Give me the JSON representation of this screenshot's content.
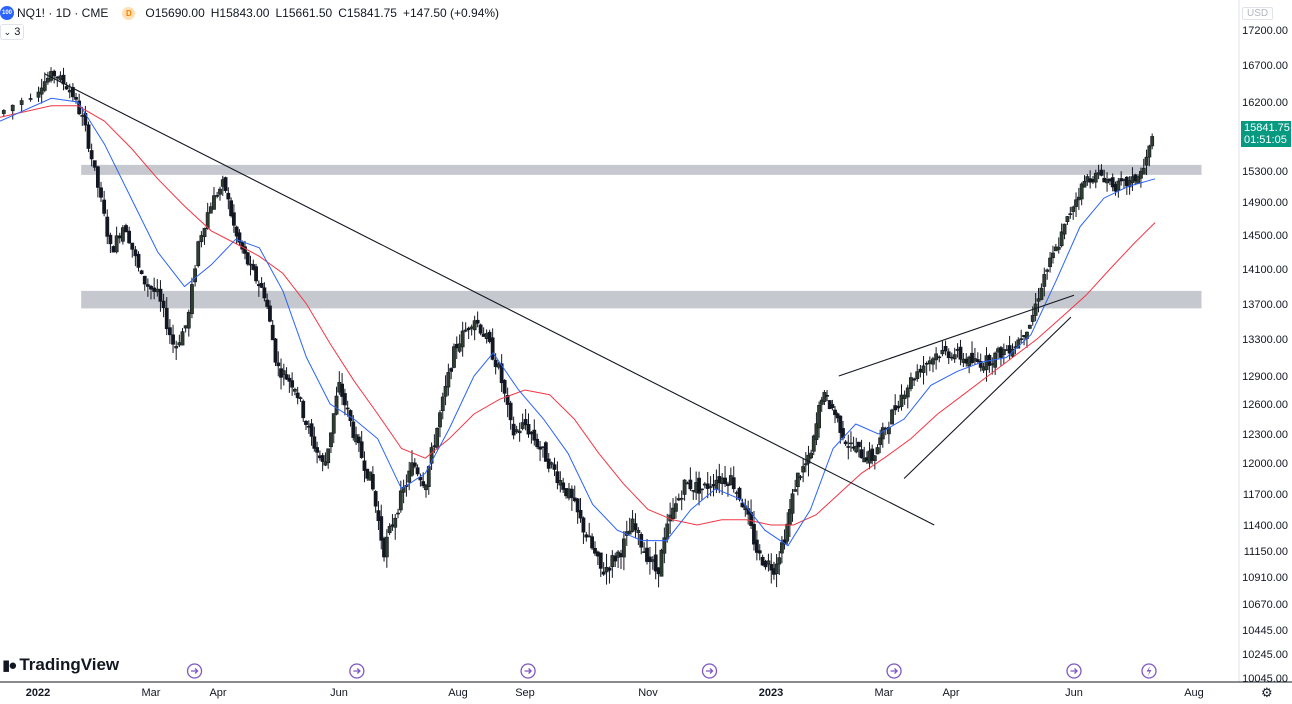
{
  "header": {
    "symbol_badge": "100",
    "title": "NQ1! · 1D · CME",
    "d_badge": "D",
    "open_label": "O",
    "open": "15690.00",
    "high_label": "H",
    "high": "15843.00",
    "low_label": "L",
    "low": "15661.50",
    "close_label": "C",
    "close": "15841.75",
    "change": "+147.50 (+0.94%)",
    "indicators_count": "3"
  },
  "price_scale": {
    "currency": "USD",
    "last_price": "15841.75",
    "countdown": "01:51:05"
  },
  "branding": {
    "logo_text": "TradingView"
  },
  "colors": {
    "up": "#2f3f2f",
    "down": "#131722",
    "ma_fast": "#2962ff",
    "ma_slow": "#f23645",
    "zone": "#b2b5be",
    "badge": "#089981"
  },
  "icons": {
    "settings": "gear-icon",
    "events": "dividend-arrow-icon",
    "lightning": "lightning-icon"
  },
  "chart_data": {
    "type": "candlestick",
    "y_ticks": [
      "17200.00",
      "16700.00",
      "16200.00",
      "15300.00",
      "14900.00",
      "14500.00",
      "14100.00",
      "13700.00",
      "13300.00",
      "12900.00",
      "12600.00",
      "12300.00",
      "12000.00",
      "11700.00",
      "11400.00",
      "11150.00",
      "10910.00",
      "10670.00",
      "10445.00",
      "10245.00",
      "10045.00"
    ],
    "x_ticks": [
      {
        "label": "2022",
        "t": 0.2,
        "bold": true
      },
      {
        "label": "Mar",
        "t": 1.9
      },
      {
        "label": "Apr",
        "t": 2.9
      },
      {
        "label": "Jun",
        "t": 4.95
      },
      {
        "label": "Aug",
        "t": 6.95
      },
      {
        "label": "Sep",
        "t": 8.0
      },
      {
        "label": "Nov",
        "t": 10.0
      },
      {
        "label": "2023",
        "t": 12.0,
        "bold": true
      },
      {
        "label": "Mar",
        "t": 14.0
      },
      {
        "label": "Apr",
        "t": 15.0
      },
      {
        "label": "Jun",
        "t": 17.0
      },
      {
        "label": "Aug",
        "t": 19.0
      }
    ],
    "price_path": [
      [
        0.0,
        16050
      ],
      [
        0.25,
        16450
      ],
      [
        0.45,
        16580
      ],
      [
        0.7,
        16350
      ],
      [
        0.9,
        15900
      ],
      [
        1.1,
        15100
      ],
      [
        1.3,
        14300
      ],
      [
        1.5,
        14650
      ],
      [
        1.75,
        14000
      ],
      [
        2.0,
        13800
      ],
      [
        2.25,
        13200
      ],
      [
        2.45,
        13500
      ],
      [
        2.6,
        14400
      ],
      [
        2.8,
        14900
      ],
      [
        3.0,
        15150
      ],
      [
        3.2,
        14500
      ],
      [
        3.45,
        14100
      ],
      [
        3.7,
        13800
      ],
      [
        3.9,
        13000
      ],
      [
        4.2,
        12800
      ],
      [
        4.45,
        12300
      ],
      [
        4.7,
        11950
      ],
      [
        4.95,
        12800
      ],
      [
        5.25,
        12200
      ],
      [
        5.5,
        11800
      ],
      [
        5.7,
        11150
      ],
      [
        5.95,
        11600
      ],
      [
        6.2,
        12000
      ],
      [
        6.4,
        11800
      ],
      [
        6.65,
        12500
      ],
      [
        6.9,
        13200
      ],
      [
        7.2,
        13550
      ],
      [
        7.4,
        13300
      ],
      [
        7.6,
        12950
      ],
      [
        7.8,
        12300
      ],
      [
        8.0,
        12400
      ],
      [
        8.25,
        12150
      ],
      [
        8.5,
        11900
      ],
      [
        8.75,
        11650
      ],
      [
        9.0,
        11300
      ],
      [
        9.25,
        10950
      ],
      [
        9.55,
        11150
      ],
      [
        9.75,
        11400
      ],
      [
        9.95,
        11150
      ],
      [
        10.15,
        10950
      ],
      [
        10.35,
        11450
      ],
      [
        10.6,
        11800
      ],
      [
        10.9,
        11750
      ],
      [
        11.1,
        11850
      ],
      [
        11.35,
        11850
      ],
      [
        11.55,
        11600
      ],
      [
        11.8,
        11100
      ],
      [
        12.05,
        11000
      ],
      [
        12.25,
        11300
      ],
      [
        12.45,
        11850
      ],
      [
        12.7,
        12050
      ],
      [
        12.9,
        12700
      ],
      [
        13.1,
        12550
      ],
      [
        13.35,
        12200
      ],
      [
        13.6,
        12100
      ],
      [
        13.8,
        12050
      ],
      [
        14.05,
        12400
      ],
      [
        14.3,
        12750
      ],
      [
        14.55,
        13000
      ],
      [
        14.8,
        13150
      ],
      [
        15.05,
        13150
      ],
      [
        15.3,
        13050
      ],
      [
        15.55,
        13050
      ],
      [
        15.8,
        13150
      ],
      [
        16.05,
        13250
      ],
      [
        16.3,
        13500
      ],
      [
        16.5,
        14000
      ],
      [
        16.75,
        14400
      ],
      [
        17.0,
        14900
      ],
      [
        17.2,
        15200
      ],
      [
        17.45,
        15250
      ],
      [
        17.7,
        15100
      ],
      [
        17.95,
        15150
      ],
      [
        18.15,
        15300
      ],
      [
        18.35,
        15841
      ]
    ],
    "ma_fast_path": [
      [
        0.0,
        15950
      ],
      [
        0.4,
        16250
      ],
      [
        0.8,
        16200
      ],
      [
        1.2,
        15650
      ],
      [
        1.6,
        14950
      ],
      [
        2.0,
        14300
      ],
      [
        2.4,
        13900
      ],
      [
        2.8,
        14150
      ],
      [
        3.2,
        14450
      ],
      [
        3.6,
        14350
      ],
      [
        4.0,
        13850
      ],
      [
        4.4,
        13100
      ],
      [
        4.8,
        12600
      ],
      [
        5.2,
        12450
      ],
      [
        5.6,
        12250
      ],
      [
        6.0,
        11750
      ],
      [
        6.4,
        11900
      ],
      [
        6.8,
        12350
      ],
      [
        7.2,
        12900
      ],
      [
        7.5,
        13150
      ],
      [
        7.9,
        12750
      ],
      [
        8.3,
        12450
      ],
      [
        8.7,
        12100
      ],
      [
        9.1,
        11600
      ],
      [
        9.5,
        11350
      ],
      [
        9.9,
        11250
      ],
      [
        10.3,
        11250
      ],
      [
        10.7,
        11550
      ],
      [
        11.1,
        11750
      ],
      [
        11.5,
        11650
      ],
      [
        11.9,
        11350
      ],
      [
        12.3,
        11200
      ],
      [
        12.7,
        11550
      ],
      [
        13.1,
        12150
      ],
      [
        13.5,
        12400
      ],
      [
        13.9,
        12300
      ],
      [
        14.3,
        12450
      ],
      [
        14.7,
        12800
      ],
      [
        15.1,
        12950
      ],
      [
        15.5,
        13050
      ],
      [
        15.9,
        13100
      ],
      [
        16.3,
        13350
      ],
      [
        16.7,
        13950
      ],
      [
        17.1,
        14600
      ],
      [
        17.5,
        14950
      ],
      [
        17.9,
        15100
      ],
      [
        18.35,
        15200
      ]
    ],
    "ma_slow_path": [
      [
        0.0,
        16000
      ],
      [
        0.4,
        16150
      ],
      [
        0.8,
        16150
      ],
      [
        1.2,
        15950
      ],
      [
        1.6,
        15600
      ],
      [
        2.0,
        15200
      ],
      [
        2.4,
        14850
      ],
      [
        2.8,
        14550
      ],
      [
        3.2,
        14400
      ],
      [
        3.6,
        14250
      ],
      [
        4.0,
        14050
      ],
      [
        4.4,
        13700
      ],
      [
        4.8,
        13250
      ],
      [
        5.2,
        12850
      ],
      [
        5.6,
        12500
      ],
      [
        6.0,
        12150
      ],
      [
        6.4,
        12050
      ],
      [
        6.8,
        12250
      ],
      [
        7.2,
        12500
      ],
      [
        7.6,
        12650
      ],
      [
        8.0,
        12750
      ],
      [
        8.4,
        12700
      ],
      [
        8.8,
        12450
      ],
      [
        9.2,
        12100
      ],
      [
        9.6,
        11800
      ],
      [
        10.0,
        11550
      ],
      [
        10.4,
        11450
      ],
      [
        10.8,
        11400
      ],
      [
        11.2,
        11450
      ],
      [
        11.6,
        11450
      ],
      [
        12.0,
        11400
      ],
      [
        12.4,
        11400
      ],
      [
        12.8,
        11500
      ],
      [
        13.2,
        11700
      ],
      [
        13.6,
        11900
      ],
      [
        14.0,
        12050
      ],
      [
        14.4,
        12250
      ],
      [
        14.8,
        12500
      ],
      [
        15.2,
        12700
      ],
      [
        15.6,
        12900
      ],
      [
        16.0,
        13100
      ],
      [
        16.4,
        13300
      ],
      [
        16.8,
        13550
      ],
      [
        17.2,
        13800
      ],
      [
        17.6,
        14100
      ],
      [
        18.0,
        14400
      ],
      [
        18.35,
        14650
      ]
    ],
    "zones": [
      {
        "t0": 0.85,
        "t1": 19.1,
        "low": 15250,
        "high": 15380
      },
      {
        "t0": 0.85,
        "t1": 19.1,
        "low": 13650,
        "high": 13850
      }
    ],
    "trendlines": [
      {
        "t0": 0.3,
        "v0": 16580,
        "t1": 14.75,
        "v1": 11400
      },
      {
        "t0": 13.2,
        "v0": 12900,
        "t1": 17.0,
        "v1": 13800
      },
      {
        "t0": 14.3,
        "v0": 11850,
        "t1": 16.95,
        "v1": 13550
      }
    ],
    "event_markers": [
      2.55,
      5.25,
      8.05,
      11.0,
      14.15,
      17.0
    ],
    "lightning_marker": 18.25,
    "y_range": [
      10045,
      17500
    ],
    "x_range": [
      0.0,
      19.6
    ]
  }
}
